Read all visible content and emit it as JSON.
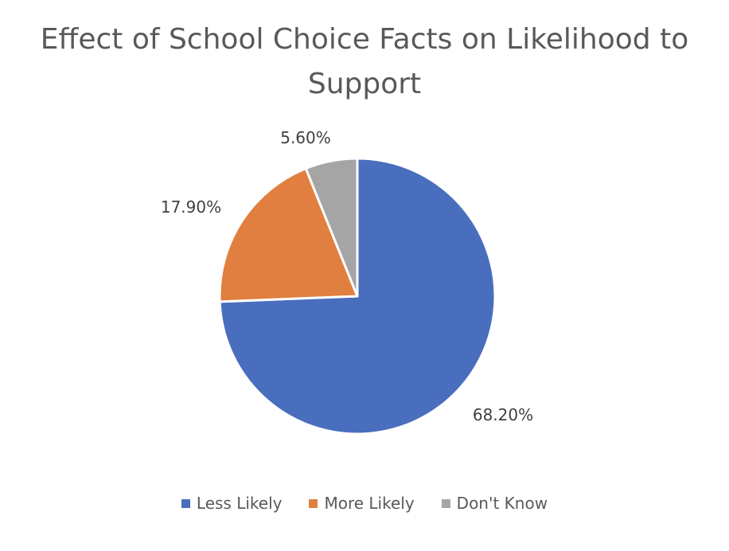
{
  "chart_data": {
    "type": "pie",
    "title": "Effect of School Choice Facts on Likelihood to Support",
    "title_lines": [
      "Effect of School Choice Facts on Likelihood to",
      "Support"
    ],
    "categories": [
      "Less Likely",
      "More Likely",
      "Don't Know"
    ],
    "values": [
      68.2,
      17.9,
      5.6
    ],
    "labels": [
      "68.20%",
      "17.90%",
      "5.60%"
    ],
    "colors": [
      "#4A6EBE",
      "#E07F3F",
      "#A5A5A5"
    ],
    "legend_position": "bottom"
  }
}
